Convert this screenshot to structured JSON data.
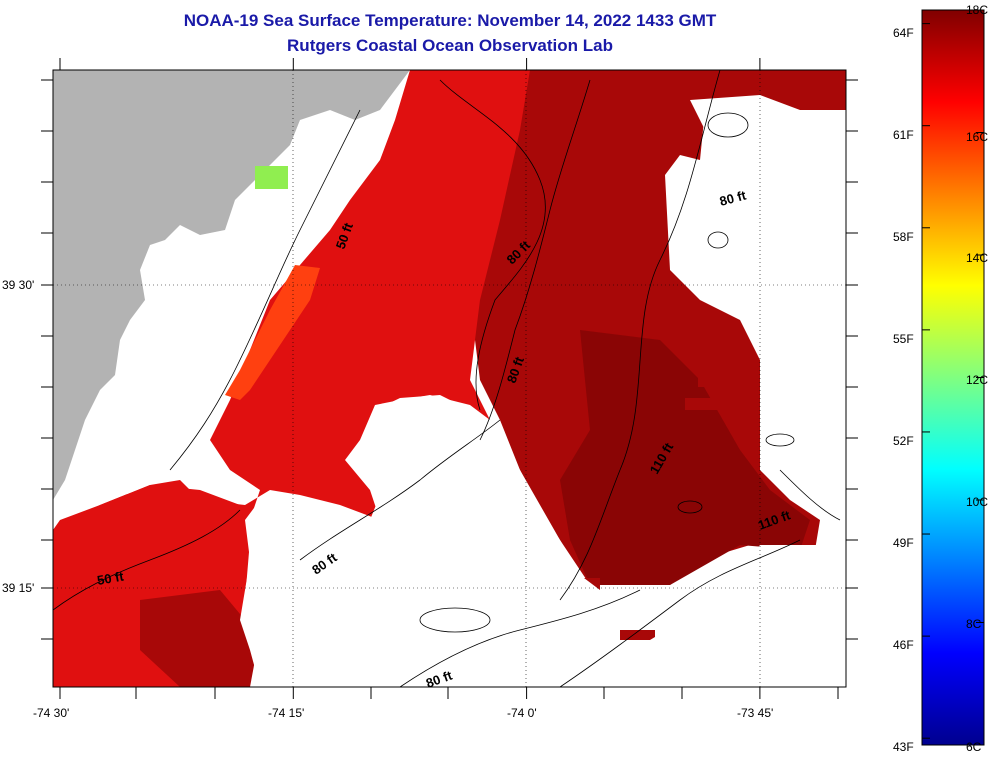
{
  "title": {
    "line1": "NOAA-19 Sea Surface Temperature:  November 14, 2022 1433 GMT",
    "line2": "Rutgers Coastal Ocean Observation Lab"
  },
  "axes": {
    "x_ticks": [
      {
        "lon": -74.5,
        "label": "-74 30'"
      },
      {
        "lon": -74.25,
        "label": "-74 15'"
      },
      {
        "lon": -74.0,
        "label": "-74 0'"
      },
      {
        "lon": -73.75,
        "label": "-73 45'"
      }
    ],
    "y_ticks": [
      {
        "lat": 39.5,
        "label": "39 30'"
      },
      {
        "lat": 39.25,
        "label": "39 15'"
      }
    ]
  },
  "colorbar": {
    "min_c": 6,
    "max_c": 18,
    "celsius_labels": [
      "18C",
      "16C",
      "14C",
      "12C",
      "10C",
      "8C",
      "6C"
    ],
    "fahrenheit_labels": [
      "64F",
      "61F",
      "58F",
      "55F",
      "52F",
      "49F",
      "46F",
      "43F"
    ],
    "colors": [
      "#00008f",
      "#0000ff",
      "#0080ff",
      "#00ffff",
      "#80ff80",
      "#ffff00",
      "#ff8000",
      "#ff0000",
      "#800000"
    ]
  },
  "map_colors": {
    "land": "#b3b3b3",
    "cloud": "#ffffff",
    "warm_coast": "#ff4010",
    "sst_mid": "#e01010",
    "sst_offshore": "#a80808",
    "sst_far": "#8a0505",
    "cool_patch": "#90ee50"
  },
  "contours": {
    "labels": [
      "50 ft",
      "80 ft",
      "80 ft",
      "80 ft",
      "80 ft",
      "80 ft",
      "110 ft",
      "110 ft",
      "50 ft"
    ]
  }
}
